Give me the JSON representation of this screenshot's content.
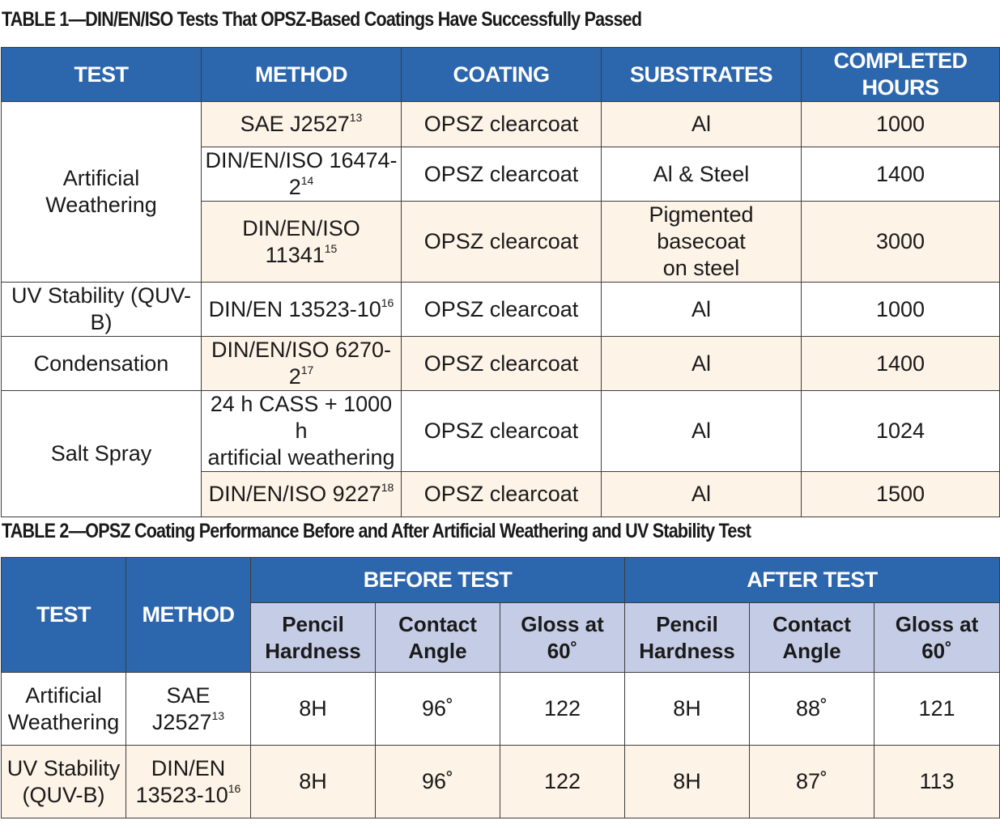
{
  "table1": {
    "caption": "TABLE 1—DIN/EN/ISO Tests That OPSZ-Based Coatings Have Successfully Passed",
    "headers": [
      "TEST",
      "METHOD",
      "COATING",
      "SUBSTRATES",
      "COMPLETED HOURS"
    ],
    "groups": {
      "weathering": "Artificial Weathering",
      "uv": "UV Stability (QUV-B)",
      "condensation": "Condensation",
      "salt": "Salt Spray"
    },
    "rows": [
      {
        "method": "SAE J2527",
        "ref": "13",
        "coating": "OPSZ clearcoat",
        "substrate": "Al",
        "hours": "1000"
      },
      {
        "method": "DIN/EN/ISO 16474-2",
        "ref": "14",
        "coating": "OPSZ clearcoat",
        "substrate": "Al & Steel",
        "hours": "1400"
      },
      {
        "method": "DIN/EN/ISO 11341",
        "ref": "15",
        "coating": "OPSZ clearcoat",
        "substrate_line1": "Pigmented basecoat",
        "substrate_line2": "on steel",
        "hours": "3000"
      },
      {
        "method": "DIN/EN 13523-10",
        "ref": "16",
        "coating": "OPSZ clearcoat",
        "substrate": "Al",
        "hours": "1000"
      },
      {
        "method": "DIN/EN/ISO 6270-2",
        "ref": "17",
        "coating": "OPSZ clearcoat",
        "substrate": "Al",
        "hours": "1400"
      },
      {
        "method_line1": "24 h CASS + 1000 h",
        "method_line2": "artificial weathering",
        "coating": "OPSZ clearcoat",
        "substrate": "Al",
        "hours": "1024"
      },
      {
        "method": "DIN/EN/ISO 9227",
        "ref": "18",
        "coating": "OPSZ clearcoat",
        "substrate": "Al",
        "hours": "1500"
      }
    ]
  },
  "table2": {
    "caption": "TABLE 2—OPSZ Coating Performance Before and After Artificial Weathering and UV Stability Test",
    "headers": {
      "test": "TEST",
      "method": "METHOD",
      "before": "BEFORE TEST",
      "after": "AFTER TEST"
    },
    "subheaders": {
      "pencil_line1": "Pencil",
      "pencil_line2": "Hardness",
      "contact_line1": "Contact",
      "contact_line2": "Angle",
      "gloss": "Gloss at 60˚"
    },
    "rows": [
      {
        "test_line1": "Artificial",
        "test_line2": "Weathering",
        "method": "SAE J2527",
        "ref": "13",
        "before": [
          "8H",
          "96˚",
          "122"
        ],
        "after": [
          "8H",
          "88˚",
          "121"
        ]
      },
      {
        "test_line1": "UV Stability",
        "test_line2": "(QUV-B)",
        "method_line1": "DIN/EN",
        "method_line2": "13523-10",
        "ref": "16",
        "before": [
          "8H",
          "96˚",
          "122"
        ],
        "after": [
          "8H",
          "87˚",
          "113"
        ]
      }
    ]
  },
  "colors": {
    "header_blue": "#2c66ad",
    "subheader_lavender": "#c5cde6",
    "row_band_cream": "#fdf3e7",
    "border": "#3d3d3d"
  }
}
